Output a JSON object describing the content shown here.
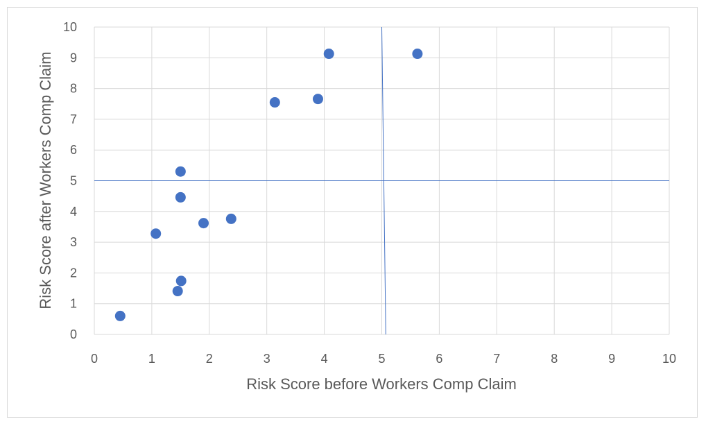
{
  "chart_data": {
    "type": "scatter",
    "title": "",
    "xlabel": "Risk Score before Workers Comp Claim",
    "ylabel": "Risk Score after Workers Comp Claim",
    "xlim": [
      0,
      10
    ],
    "ylim": [
      0,
      10
    ],
    "x_ticks": [
      "0",
      "1",
      "2",
      "3",
      "4",
      "5",
      "6",
      "7",
      "8",
      "9",
      "10"
    ],
    "y_ticks": [
      "0",
      "1",
      "2",
      "3",
      "4",
      "5",
      "6",
      "7",
      "8",
      "9",
      "10"
    ],
    "grid": true,
    "legend": "none",
    "marker_color": "#4472c4",
    "reference_lines": [
      {
        "orientation": "horizontal",
        "y": 5
      },
      {
        "orientation": "vertical",
        "x_top": 5.0,
        "x_bottom": 5.07
      }
    ],
    "series": [
      {
        "points": [
          {
            "x": 0.45,
            "y": 0.6
          },
          {
            "x": 1.07,
            "y": 3.28
          },
          {
            "x": 1.45,
            "y": 1.41
          },
          {
            "x": 1.51,
            "y": 1.74
          },
          {
            "x": 1.5,
            "y": 4.46
          },
          {
            "x": 1.5,
            "y": 5.3
          },
          {
            "x": 1.9,
            "y": 3.62
          },
          {
            "x": 2.38,
            "y": 3.76
          },
          {
            "x": 3.14,
            "y": 7.55
          },
          {
            "x": 3.89,
            "y": 7.66
          },
          {
            "x": 4.08,
            "y": 9.13
          },
          {
            "x": 5.62,
            "y": 9.13
          }
        ]
      }
    ]
  }
}
